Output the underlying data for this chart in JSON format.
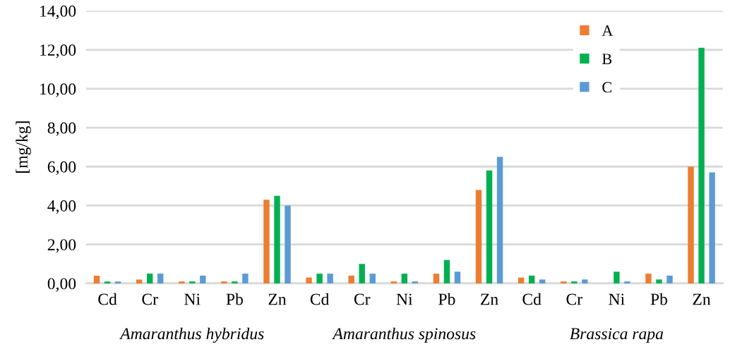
{
  "chart_data": {
    "type": "bar",
    "ylabel": "[mg/kg]",
    "categories": [
      "Cd",
      "Cr",
      "Ni",
      "Pb",
      "Zn",
      "Cd",
      "Cr",
      "Ni",
      "Pb",
      "Zn",
      "Cd",
      "Cr",
      "Ni",
      "Pb",
      "Zn"
    ],
    "series": [
      {
        "name": "A",
        "color": "#ed7d31",
        "values": [
          0.4,
          0.2,
          0.1,
          0.1,
          4.3,
          0.3,
          0.4,
          0.1,
          0.5,
          4.8,
          0.3,
          0.1,
          null,
          0.5,
          6.0
        ]
      },
      {
        "name": "B",
        "color": "#00b050",
        "values": [
          0.1,
          0.5,
          0.1,
          0.1,
          4.5,
          0.5,
          1.0,
          0.5,
          1.2,
          5.8,
          0.4,
          0.1,
          0.6,
          0.2,
          12.1
        ]
      },
      {
        "name": "C",
        "color": "#5b9bd5",
        "values": [
          0.1,
          0.5,
          0.4,
          0.5,
          4.0,
          0.5,
          0.5,
          0.1,
          0.6,
          6.5,
          0.2,
          0.2,
          0.1,
          0.4,
          5.7
        ]
      }
    ],
    "annotations": [
      "Amaranthus hybridus",
      "Amaranthus spinosus",
      "Brassica rapa"
    ],
    "ylim": [
      0,
      14
    ],
    "yticks": [
      {
        "value": 0,
        "label": "0,00"
      },
      {
        "value": 2,
        "label": "2,00"
      },
      {
        "value": 4,
        "label": "4,00"
      },
      {
        "value": 6,
        "label": "6,00"
      },
      {
        "value": 8,
        "label": "8,00"
      },
      {
        "value": 10,
        "label": "10,00"
      },
      {
        "value": 12,
        "label": "12,00"
      },
      {
        "value": 14,
        "label": "14,00"
      }
    ],
    "grid": "y",
    "legend": "top right"
  }
}
